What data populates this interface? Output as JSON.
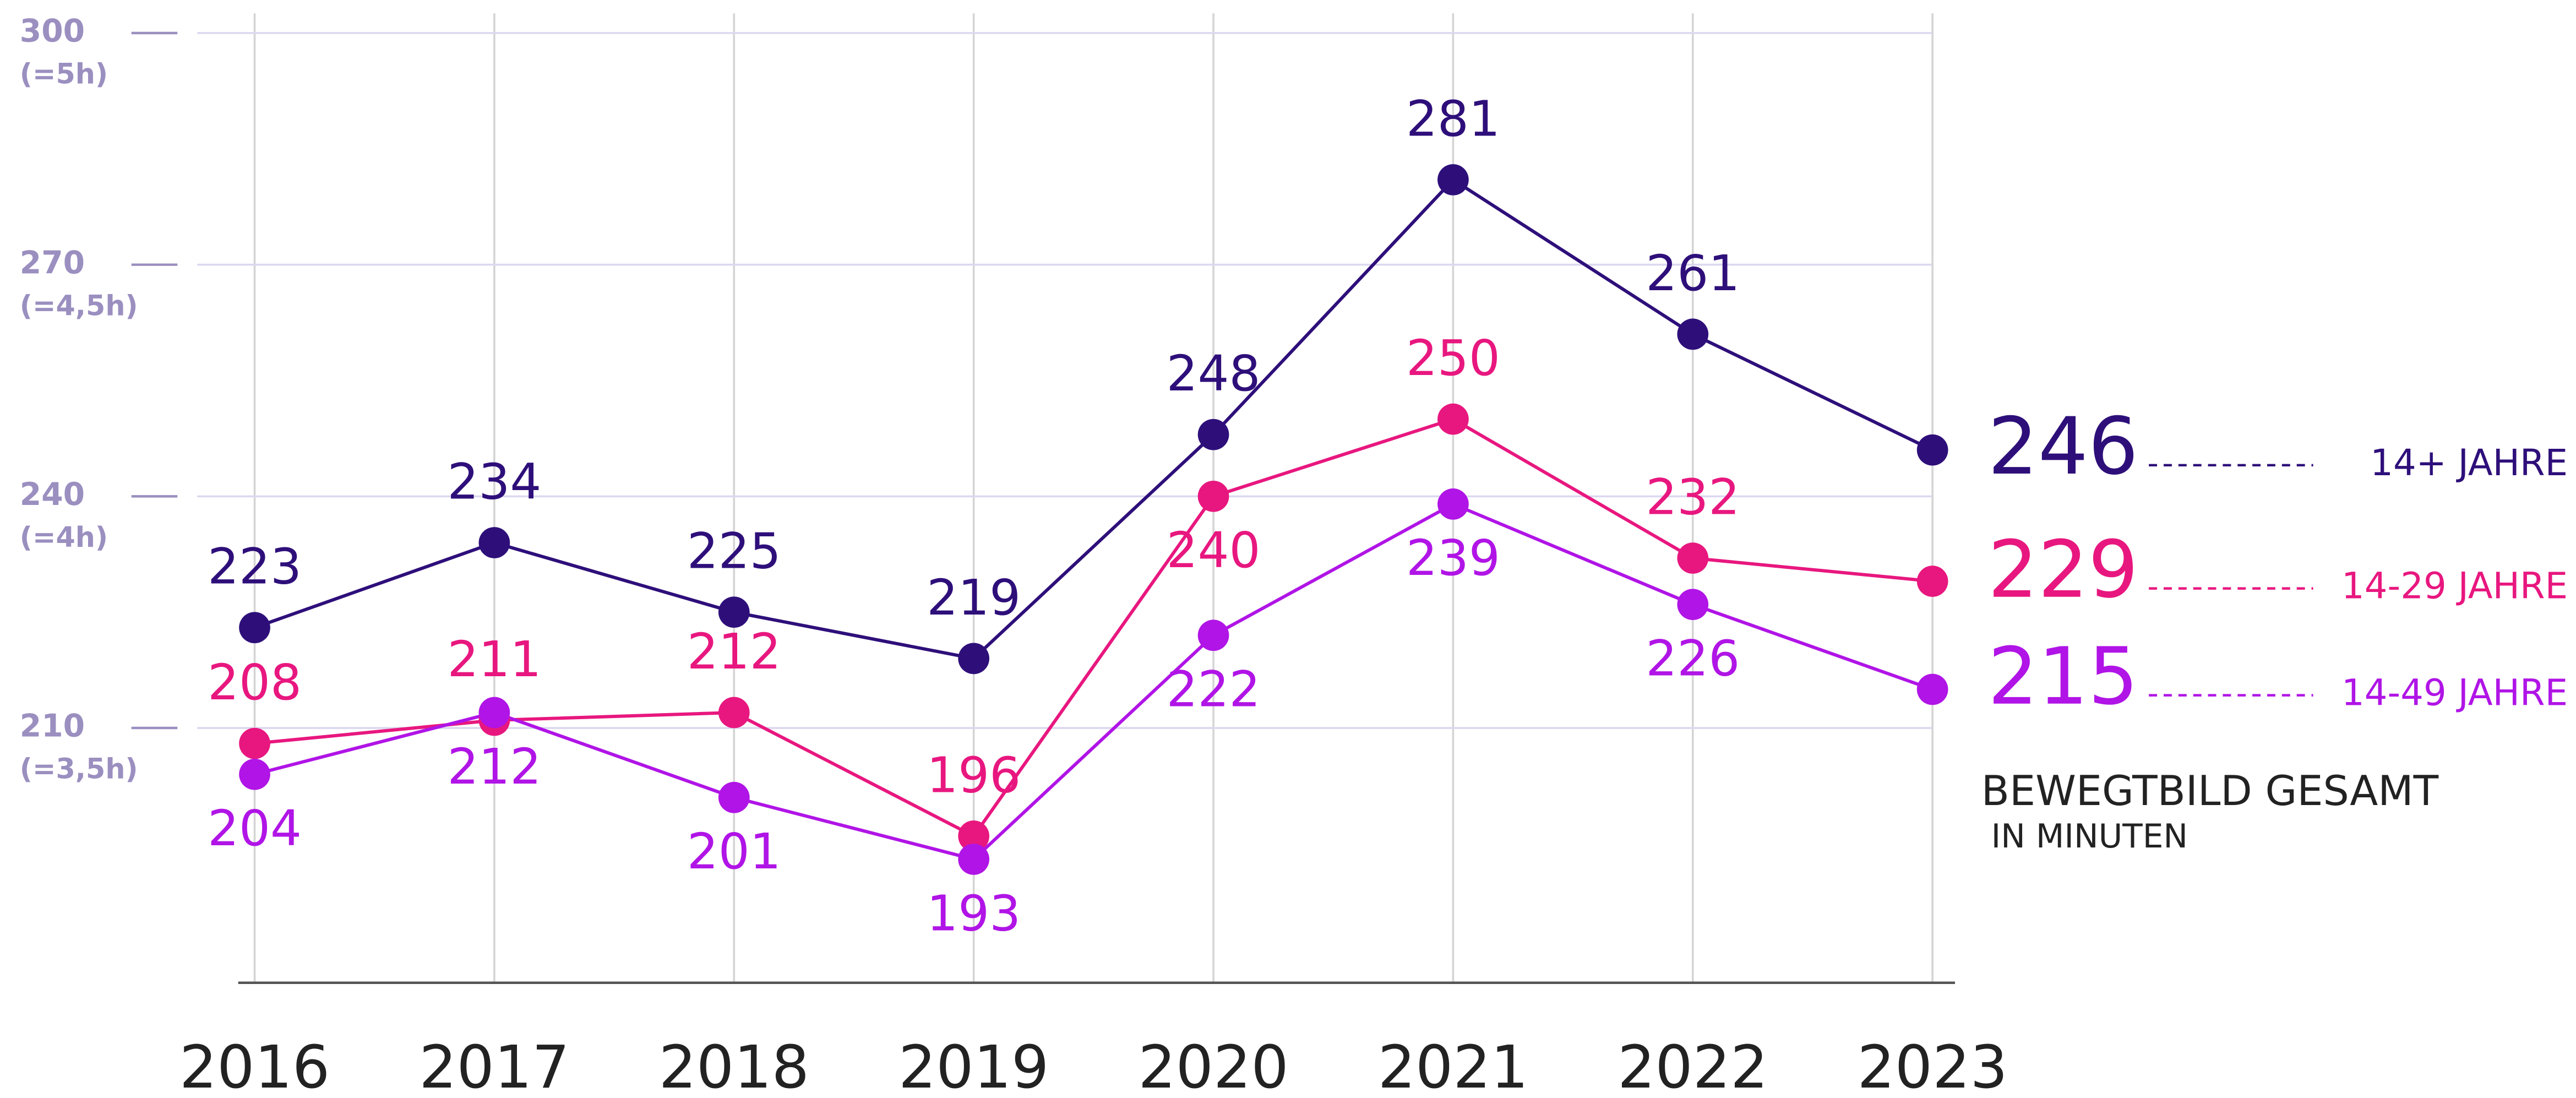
{
  "chart_data": {
    "type": "line",
    "categories": [
      "2016",
      "2017",
      "2018",
      "2019",
      "2020",
      "2021",
      "2022",
      "2023"
    ],
    "series": [
      {
        "name": "14+ JAHRE",
        "color": "#2e0f7a",
        "values": [
          223,
          234,
          225,
          219,
          248,
          281,
          261,
          246
        ]
      },
      {
        "name": "14-29 JAHRE",
        "color": "#e8177f",
        "values": [
          208,
          211,
          212,
          196,
          240,
          250,
          232,
          229
        ]
      },
      {
        "name": "14-49 JAHRE",
        "color": "#b014e6",
        "values": [
          204,
          212,
          201,
          193,
          222,
          239,
          226,
          215
        ]
      }
    ],
    "ylim": [
      177,
      300
    ],
    "yticks": [
      210,
      240,
      270,
      300
    ],
    "ytick_sublabels": [
      "(=3,5h)",
      "(=4h)",
      "(=4,5h)",
      "(=5h)"
    ],
    "grid": true,
    "annotation": [
      "BEWEGTBILD GESAMT",
      "IN MINUTEN"
    ]
  }
}
